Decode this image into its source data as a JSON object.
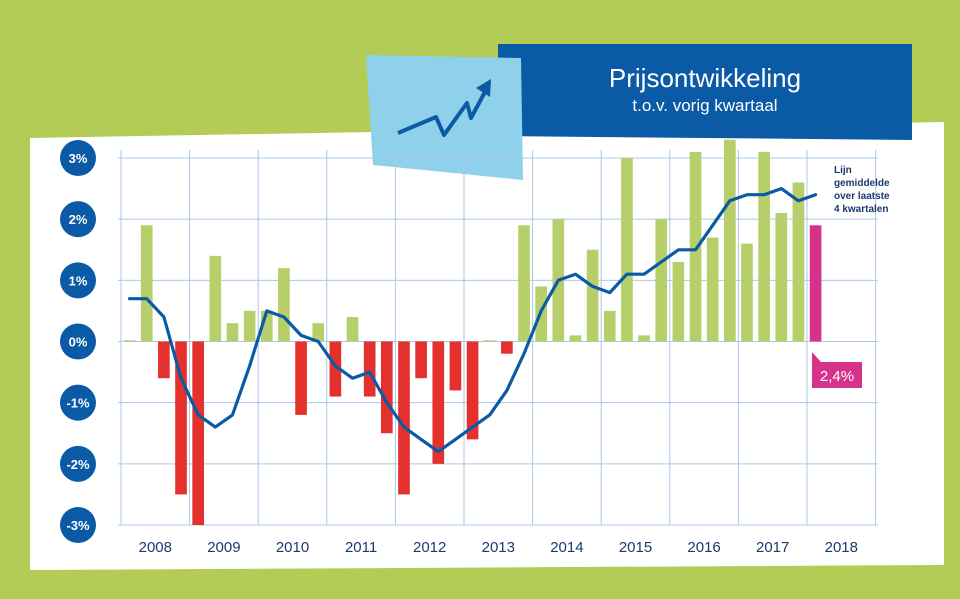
{
  "title": "Prijsontwikkeling",
  "subtitle": "t.o.v. vorig kwartaal",
  "legend": [
    "Lijn",
    "gemiddelde",
    "over laatste",
    "4 kwartalen"
  ],
  "callout": "2,4%",
  "colors": {
    "background": "#b3cc55",
    "panel": "#ffffff",
    "header": "#0a5aa5",
    "icon_card": "#8fd0ea",
    "positive": "#b6cf6b",
    "negative": "#e5312e",
    "highlight": "#d6328b",
    "line": "#0a5aa5",
    "grid": "#a9c8e8",
    "label_circle": "#0a5aa5"
  },
  "icon": "trend-up-arrow-icon",
  "chart_data": {
    "type": "bar",
    "title": "Prijsontwikkeling",
    "subtitle": "t.o.v. vorig kwartaal",
    "ylim": [
      -3,
      3
    ],
    "yticks": [
      "3%",
      "2%",
      "1%",
      "0%",
      "-1%",
      "-2%",
      "-3%"
    ],
    "ytick_values": [
      3,
      2,
      1,
      0,
      -1,
      -2,
      -3
    ],
    "xticks": [
      "2008",
      "2009",
      "2010",
      "2011",
      "2012",
      "2013",
      "2014",
      "2015",
      "2016",
      "2017",
      "2018"
    ],
    "grid": true,
    "quarters_per_year": 4,
    "series": [
      {
        "kind": "bar",
        "values": [
          0.02,
          1.9,
          -0.6,
          -2.5,
          -3.0,
          1.4,
          0.3,
          0.5,
          0.5,
          1.2,
          -1.2,
          0.3,
          -0.9,
          0.4,
          -0.9,
          -1.5,
          -2.5,
          -0.6,
          -2.0,
          -0.8,
          -1.6,
          0.02,
          -0.2,
          1.9,
          0.9,
          2.0,
          0.1,
          1.5,
          0.5,
          3.0,
          0.1,
          2.0,
          1.3,
          3.1,
          1.7,
          3.3,
          1.6,
          3.1,
          2.1,
          2.6,
          1.9
        ]
      },
      {
        "kind": "line",
        "name": "Lijn gemiddelde over laatste 4 kwartalen",
        "values": [
          0.7,
          0.7,
          0.4,
          -0.6,
          -1.2,
          -1.4,
          -1.2,
          -0.4,
          0.5,
          0.4,
          0.1,
          0.0,
          -0.4,
          -0.6,
          -0.5,
          -1.0,
          -1.4,
          -1.6,
          -1.8,
          -1.6,
          -1.4,
          -1.2,
          -0.8,
          -0.2,
          0.5,
          1.0,
          1.1,
          0.9,
          0.8,
          1.1,
          1.1,
          1.3,
          1.5,
          1.5,
          1.9,
          2.3,
          2.4,
          2.4,
          2.5,
          2.3,
          2.4
        ]
      }
    ]
  }
}
